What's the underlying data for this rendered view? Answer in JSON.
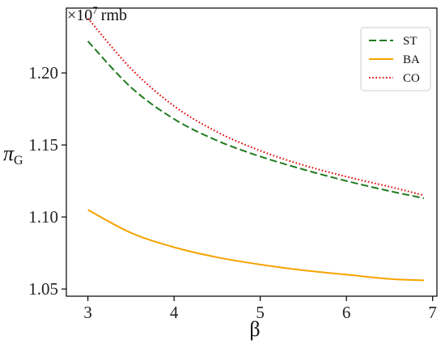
{
  "chart_data": {
    "type": "line",
    "title": "",
    "xlabel": "β",
    "ylabel": {
      "main": "π",
      "subscript": "G"
    },
    "y_multiplier": {
      "prefix": "×10",
      "exponent": "7",
      "unit": "rmb"
    },
    "xlim": [
      2.75,
      7.05
    ],
    "ylim": [
      1.045,
      1.245
    ],
    "x_ticks": [
      3,
      4,
      5,
      6,
      7
    ],
    "y_ticks": [
      1.05,
      1.1,
      1.15,
      1.2
    ],
    "x_tick_labels": [
      "3",
      "4",
      "5",
      "6",
      "7"
    ],
    "y_tick_labels": [
      "1.05",
      "1.10",
      "1.15",
      "1.20"
    ],
    "grid": false,
    "legend_position": "top-right",
    "x": [
      3.0,
      3.5,
      4.0,
      4.5,
      5.0,
      5.5,
      6.0,
      6.5,
      6.9
    ],
    "series": [
      {
        "name": "ST",
        "color": "#1f7a1f",
        "style": "dashed",
        "values": [
          1.222,
          1.19,
          1.168,
          1.153,
          1.142,
          1.133,
          1.125,
          1.118,
          1.113
        ]
      },
      {
        "name": "BA",
        "color": "#f5a300",
        "style": "solid",
        "values": [
          1.105,
          1.089,
          1.079,
          1.072,
          1.067,
          1.063,
          1.06,
          1.057,
          1.056
        ]
      },
      {
        "name": "CO",
        "color": "#e00000",
        "style": "dotted",
        "values": [
          1.238,
          1.203,
          1.177,
          1.159,
          1.146,
          1.136,
          1.128,
          1.121,
          1.115
        ]
      }
    ]
  }
}
